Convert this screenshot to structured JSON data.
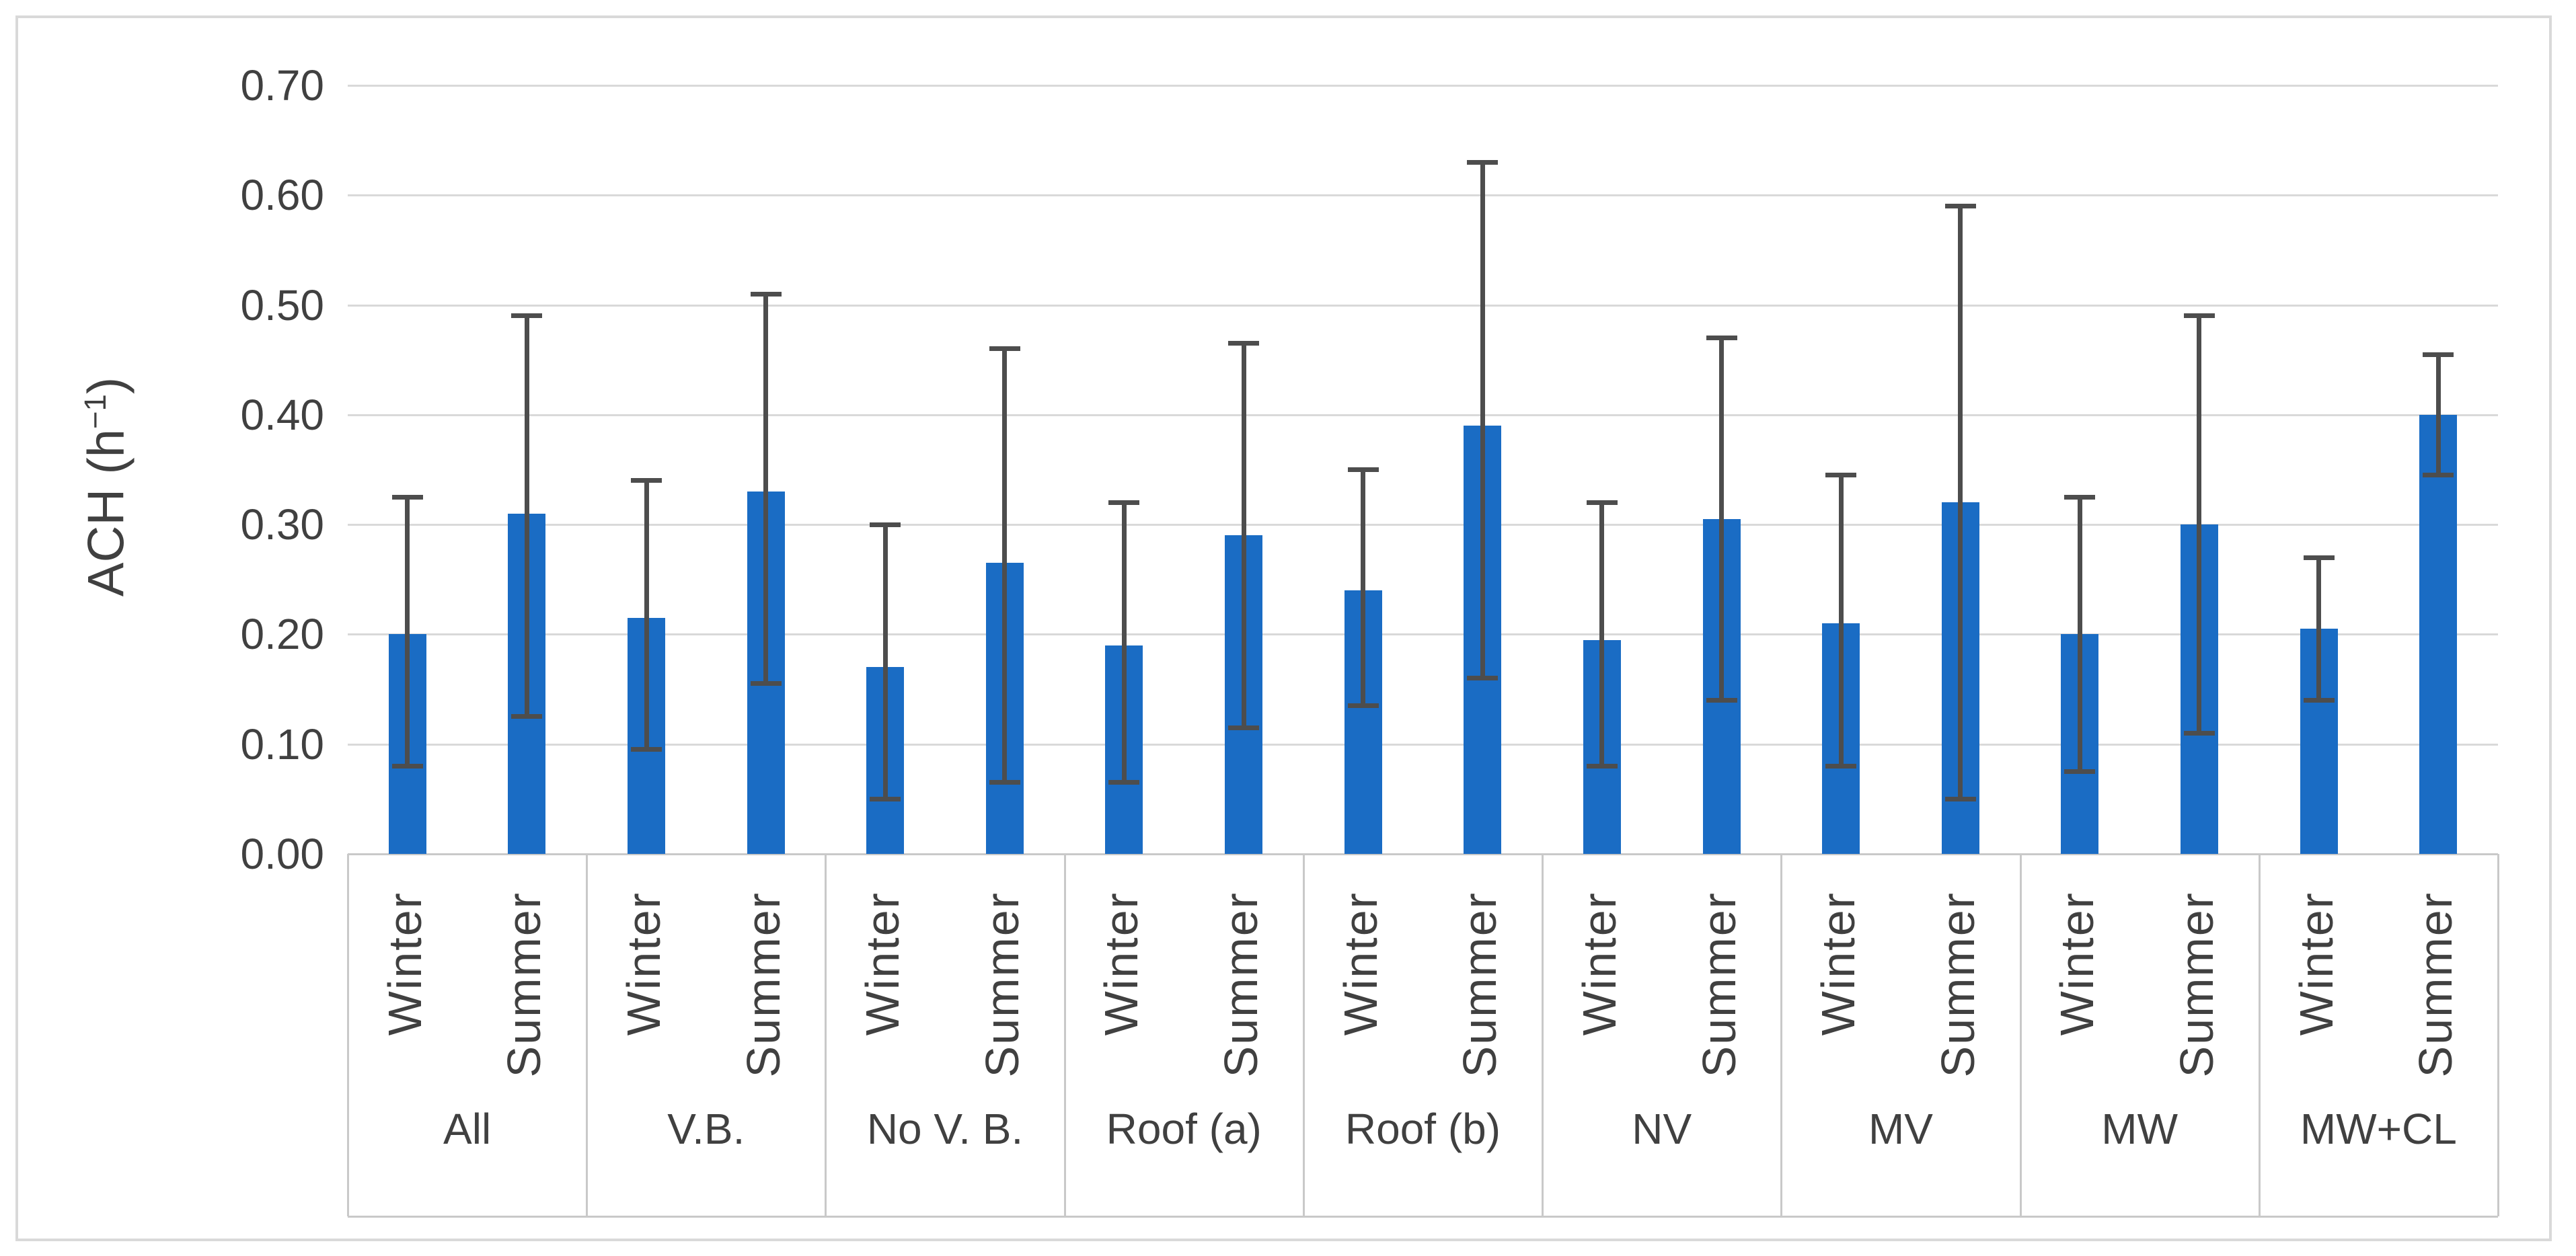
{
  "figure": {
    "y_axis": {
      "title_base": "ACH (h",
      "title_sup": "−1",
      "title_close": ")",
      "tick_labels": [
        "0.70",
        "0.60",
        "0.50",
        "0.40",
        "0.30",
        "0.20",
        "0.10",
        "0.00"
      ]
    }
  },
  "colors": {
    "bar": "#1A6CC4",
    "error_bar": "#4D4D4D",
    "gridline": "#D9D9D9",
    "frame_line": "#C9C9C9",
    "text": "#404040",
    "figure_border": "#D9D9D9"
  },
  "chart_data": {
    "type": "bar",
    "title": "",
    "xlabel": "",
    "ylabel": "ACH (h⁻¹)",
    "ylim": [
      0,
      0.7
    ],
    "y_step": 0.1,
    "grid": true,
    "legend_position": "none",
    "error_bars": true,
    "categories": [
      "All",
      "V.B.",
      "No V. B.",
      "Roof (a)",
      "Roof (b)",
      "NV",
      "MV",
      "MW",
      "MW+CL"
    ],
    "sub_categories": [
      "Winter",
      "Summer"
    ],
    "series": [
      {
        "name": "Winter",
        "values": [
          0.2,
          0.215,
          0.17,
          0.19,
          0.24,
          0.195,
          0.21,
          0.2,
          0.205
        ],
        "error_low": [
          0.08,
          0.095,
          0.05,
          0.065,
          0.135,
          0.08,
          0.08,
          0.075,
          0.14
        ],
        "error_high": [
          0.325,
          0.34,
          0.3,
          0.32,
          0.35,
          0.32,
          0.345,
          0.325,
          0.27
        ]
      },
      {
        "name": "Summer",
        "values": [
          0.31,
          0.33,
          0.265,
          0.29,
          0.39,
          0.305,
          0.32,
          0.3,
          0.4
        ],
        "error_low": [
          0.125,
          0.155,
          0.065,
          0.115,
          0.16,
          0.14,
          0.05,
          0.11,
          0.345
        ],
        "error_high": [
          0.49,
          0.51,
          0.46,
          0.465,
          0.63,
          0.47,
          0.59,
          0.49,
          0.455
        ]
      }
    ]
  }
}
